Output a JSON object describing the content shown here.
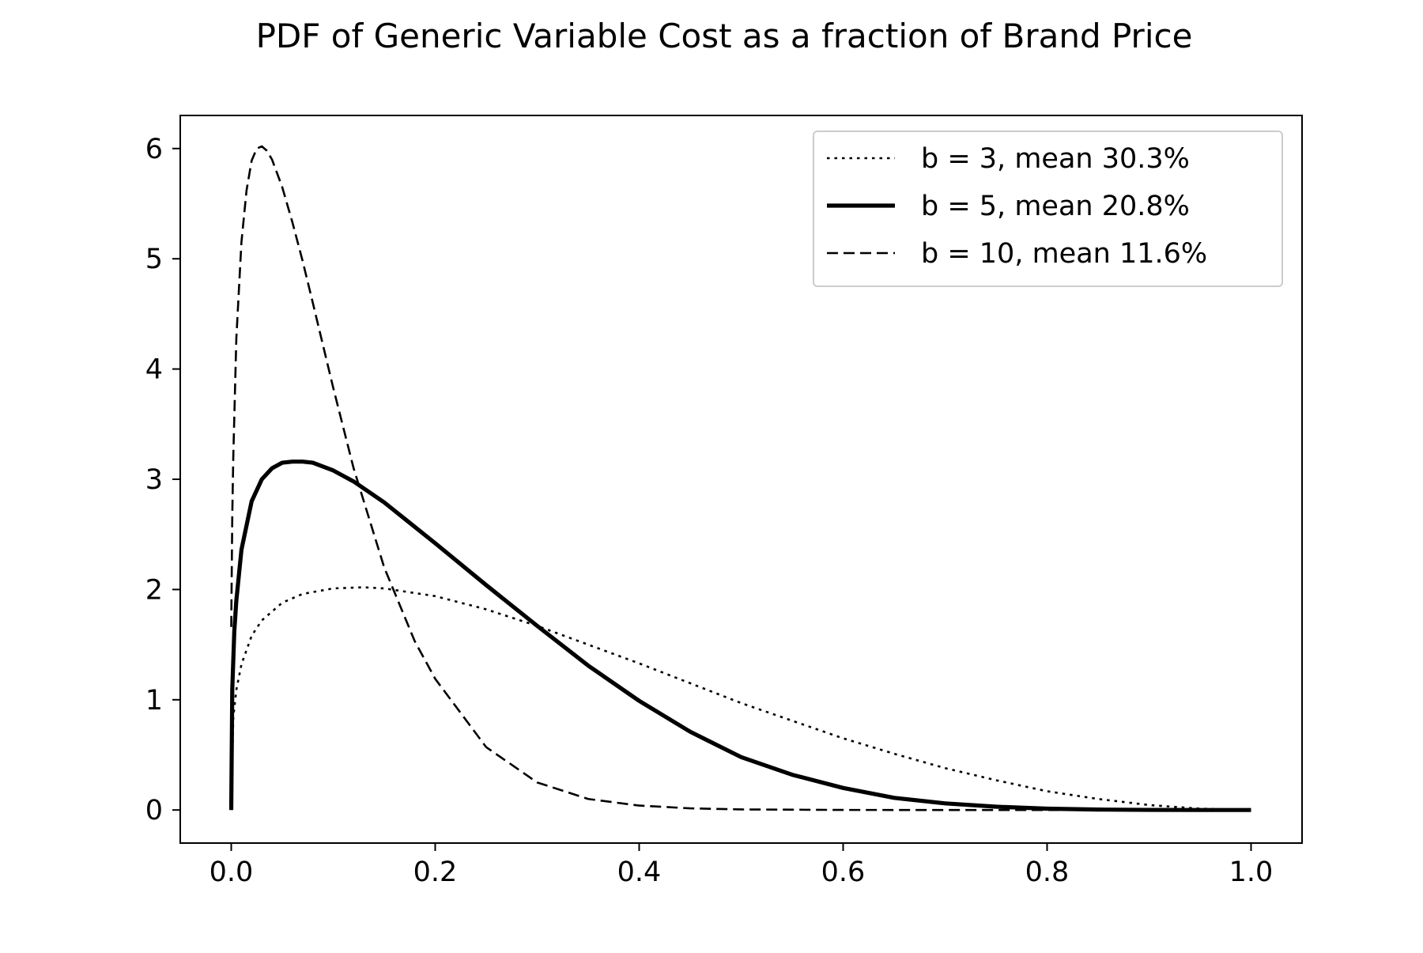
{
  "chart_data": {
    "type": "line",
    "title": "PDF of Generic Variable Cost as a fraction of Brand Price",
    "xlabel": "",
    "ylabel": "",
    "xlim": [
      -0.05,
      1.05
    ],
    "ylim": [
      -0.3,
      6.3
    ],
    "xticks": [
      0.0,
      0.2,
      0.4,
      0.6,
      0.8,
      1.0
    ],
    "xtick_labels": [
      "0.0",
      "0.2",
      "0.4",
      "0.6",
      "0.8",
      "1.0"
    ],
    "yticks": [
      0,
      1,
      2,
      3,
      4,
      5,
      6
    ],
    "ytick_labels": [
      "0",
      "1",
      "2",
      "3",
      "4",
      "5",
      "6"
    ],
    "grid": false,
    "legend_position": "top-right",
    "series": [
      {
        "name": "b = 3, mean 30.3%",
        "style": "dotted",
        "color": "#000000",
        "x": [
          0.0,
          0.002,
          0.005,
          0.01,
          0.02,
          0.03,
          0.05,
          0.07,
          0.1,
          0.13,
          0.15,
          0.2,
          0.25,
          0.3,
          0.35,
          0.4,
          0.45,
          0.5,
          0.55,
          0.6,
          0.65,
          0.7,
          0.75,
          0.8,
          0.85,
          0.9,
          0.95,
          1.0
        ],
        "y": [
          0.0,
          0.84,
          1.09,
          1.32,
          1.58,
          1.72,
          1.88,
          1.96,
          2.01,
          2.02,
          2.01,
          1.94,
          1.82,
          1.67,
          1.5,
          1.33,
          1.15,
          0.97,
          0.81,
          0.65,
          0.51,
          0.38,
          0.27,
          0.17,
          0.1,
          0.045,
          0.012,
          0.0
        ]
      },
      {
        "name": "b = 5, mean 20.8%",
        "style": "solid",
        "color": "#000000",
        "x": [
          0.0,
          0.001,
          0.003,
          0.005,
          0.01,
          0.02,
          0.03,
          0.04,
          0.05,
          0.06,
          0.07,
          0.08,
          0.1,
          0.12,
          0.15,
          0.2,
          0.25,
          0.3,
          0.35,
          0.4,
          0.45,
          0.5,
          0.55,
          0.6,
          0.65,
          0.7,
          0.75,
          0.8,
          0.85,
          0.9,
          0.95,
          1.0
        ],
        "y": [
          0.0,
          1.09,
          1.62,
          1.9,
          2.36,
          2.8,
          3.0,
          3.1,
          3.15,
          3.16,
          3.16,
          3.15,
          3.08,
          2.98,
          2.79,
          2.42,
          2.04,
          1.67,
          1.31,
          0.99,
          0.71,
          0.48,
          0.32,
          0.2,
          0.11,
          0.06,
          0.03,
          0.012,
          0.004,
          0.001,
          0.0,
          0.0
        ]
      },
      {
        "name": "b = 10, mean 11.6%",
        "style": "dashed",
        "color": "#000000",
        "x": [
          0.0,
          0.001,
          0.002,
          0.005,
          0.01,
          0.015,
          0.02,
          0.025,
          0.03,
          0.035,
          0.04,
          0.05,
          0.06,
          0.07,
          0.08,
          0.1,
          0.12,
          0.15,
          0.18,
          0.2,
          0.25,
          0.3,
          0.35,
          0.4,
          0.45,
          0.5,
          0.6,
          0.7,
          0.8,
          0.9,
          1.0
        ],
        "y": [
          1.66,
          2.66,
          3.2,
          4.28,
          5.15,
          5.62,
          5.89,
          6.0,
          6.02,
          5.98,
          5.9,
          5.65,
          5.33,
          4.98,
          4.6,
          3.83,
          3.1,
          2.2,
          1.53,
          1.19,
          0.57,
          0.25,
          0.1,
          0.04,
          0.015,
          0.005,
          0.0005,
          0.0,
          0.0,
          0.0,
          0.0
        ]
      }
    ]
  }
}
